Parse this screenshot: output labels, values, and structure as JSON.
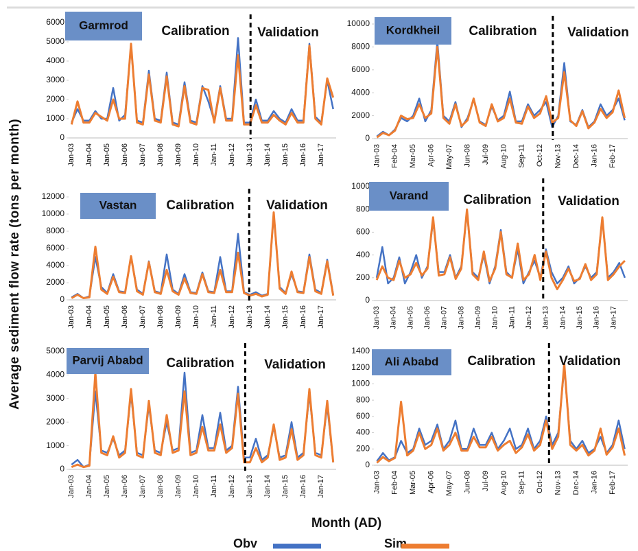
{
  "figure": {
    "y_label": "Average sediment flow rate (tons per month)",
    "x_label": "Month (AD)"
  },
  "chart_data": [
    {
      "type": "line",
      "title": "Garmrod",
      "annotations": [
        "Calibration",
        "Validation"
      ],
      "categories": [
        "Jan-03",
        null,
        null,
        "Jan-04",
        null,
        null,
        "Jan-05",
        null,
        null,
        "Jan-06",
        null,
        null,
        "Jan-07",
        null,
        null,
        "Jan-08",
        null,
        null,
        "Jan-09",
        null,
        null,
        "Jan-10",
        null,
        null,
        "Jan-11",
        null,
        null,
        "Jan-12",
        null,
        null,
        "Jan-13",
        null,
        null,
        "Jan-14",
        null,
        null,
        "Jan-15",
        null,
        null,
        "Jan-16",
        null,
        null,
        "Jan-17",
        null,
        null
      ],
      "series": [
        {
          "name": "Obv",
          "color": "#4472c4",
          "values": [
            800,
            1500,
            900,
            900,
            1400,
            1000,
            1000,
            2600,
            900,
            1200,
            4800,
            900,
            800,
            3500,
            1000,
            900,
            3400,
            800,
            700,
            2900,
            900,
            800,
            2700,
            1900,
            900,
            2700,
            1000,
            1000,
            5200,
            800,
            800,
            2000,
            900,
            900,
            1400,
            1000,
            800,
            1500,
            900,
            900,
            4900,
            1100,
            800,
            3000,
            1500
          ]
        },
        {
          "name": "Sim",
          "color": "#ed7d31",
          "values": [
            700,
            1900,
            800,
            800,
            1300,
            1100,
            900,
            2000,
            1000,
            1000,
            4900,
            800,
            700,
            3300,
            900,
            800,
            3200,
            700,
            600,
            2700,
            800,
            700,
            2600,
            2500,
            800,
            2600,
            900,
            900,
            4300,
            700,
            700,
            1700,
            800,
            800,
            1200,
            900,
            700,
            1300,
            800,
            800,
            4800,
            1000,
            700,
            3100,
            2100
          ]
        }
      ],
      "ylim": [
        0,
        6000
      ],
      "yticks": [
        0,
        1000,
        2000,
        3000,
        4000,
        5000,
        6000
      ]
    },
    {
      "type": "line",
      "title": "Kordkheil",
      "annotations": [
        "Calibration",
        "Validation"
      ],
      "categories": [
        "Jan-03",
        null,
        null,
        "Feb-04",
        null,
        null,
        "Mar-05",
        null,
        null,
        "Apr-06",
        null,
        null,
        "May-07",
        null,
        null,
        "Jun-08",
        null,
        null,
        "Jul-09",
        null,
        null,
        "Aug-10",
        null,
        null,
        "Sep-11",
        null,
        null,
        "Oct-12",
        null,
        null,
        "Nov-13",
        null,
        null,
        "Dec-14",
        null,
        null,
        "Jan-16",
        null,
        null,
        "Feb-17",
        null,
        null
      ],
      "series": [
        {
          "name": "Obv",
          "color": "#4472c4",
          "values": [
            200,
            600,
            300,
            800,
            1800,
            1500,
            2000,
            3500,
            1500,
            2500,
            8500,
            2000,
            1500,
            3200,
            1000,
            1800,
            3400,
            1500,
            1200,
            2800,
            1600,
            2000,
            4100,
            1500,
            1500,
            3000,
            2000,
            2500,
            3200,
            1000,
            2000,
            6600,
            1500,
            1200,
            2500,
            1000,
            1500,
            3000,
            2000,
            2500,
            3500,
            1600
          ]
        },
        {
          "name": "Sim",
          "color": "#ed7d31",
          "values": [
            100,
            500,
            300,
            700,
            2000,
            1700,
            1800,
            3000,
            1800,
            2200,
            8000,
            1800,
            1300,
            3000,
            1100,
            1600,
            3500,
            1400,
            1100,
            3000,
            1500,
            1800,
            3500,
            1400,
            1300,
            2800,
            1800,
            2200,
            3700,
            1400,
            1800,
            5800,
            1600,
            1100,
            2400,
            900,
            1400,
            2600,
            1800,
            2300,
            4200,
            1800
          ]
        }
      ],
      "ylim": [
        0,
        10000
      ],
      "yticks": [
        0,
        2000,
        4000,
        6000,
        8000,
        10000
      ]
    },
    {
      "type": "line",
      "title": "Vastan",
      "annotations": [
        "Calibration",
        "Validation"
      ],
      "categories": [
        "Jan-03",
        null,
        null,
        "Jan-04",
        null,
        null,
        "Jan-05",
        null,
        null,
        "Jan-06",
        null,
        null,
        "Jan-07",
        null,
        null,
        "Jan-08",
        null,
        null,
        "Jan-09",
        null,
        null,
        "Jan-10",
        null,
        null,
        "Jan-11",
        null,
        null,
        "Jan-12",
        null,
        null,
        "Jan-13",
        null,
        null,
        "Jan-14",
        null,
        null,
        "Jan-15",
        null,
        null,
        "Jan-16",
        null,
        null,
        "Jan-17",
        null,
        null
      ],
      "series": [
        {
          "name": "Obv",
          "color": "#4472c4",
          "values": [
            300,
            700,
            200,
            400,
            5000,
            1500,
            800,
            3000,
            1000,
            900,
            5000,
            1200,
            700,
            4500,
            1000,
            800,
            5300,
            1200,
            700,
            3000,
            900,
            800,
            3200,
            1000,
            900,
            5000,
            1000,
            1000,
            7700,
            900,
            600,
            900,
            500,
            700,
            10000,
            1500,
            800,
            3000,
            1000,
            900,
            5300,
            1200,
            800,
            4700,
            600
          ]
        },
        {
          "name": "Sim",
          "color": "#ed7d31",
          "values": [
            200,
            600,
            200,
            300,
            6200,
            1200,
            700,
            2700,
            900,
            800,
            5100,
            1000,
            600,
            4400,
            900,
            700,
            3500,
            1000,
            600,
            2500,
            800,
            700,
            3000,
            900,
            800,
            3500,
            900,
            900,
            5500,
            800,
            500,
            700,
            400,
            600,
            10200,
            1300,
            700,
            3300,
            900,
            800,
            5000,
            1000,
            700,
            4500,
            500
          ]
        }
      ],
      "ylim": [
        0,
        12000
      ],
      "yticks": [
        0,
        2000,
        4000,
        6000,
        8000,
        10000,
        12000
      ]
    },
    {
      "type": "line",
      "title": "Varand",
      "annotations": [
        "Calibration",
        "Validation"
      ],
      "categories": [
        "Jan-03",
        null,
        null,
        "Jan-04",
        null,
        null,
        "Jan-05",
        null,
        null,
        "Jan-06",
        null,
        null,
        "Jan-07",
        null,
        null,
        "Jan-08",
        null,
        null,
        "Jan-09",
        null,
        null,
        "Jan-10",
        null,
        null,
        "Jan-11",
        null,
        null,
        "Jan-12",
        null,
        null,
        "Jan-13",
        null,
        null,
        "Jan-14",
        null,
        null,
        "Jan-15",
        null,
        null,
        "Jan-16",
        null,
        null,
        "Jan-17",
        null,
        null
      ],
      "series": [
        {
          "name": "Obv",
          "color": "#4472c4",
          "values": [
            200,
            470,
            150,
            200,
            380,
            150,
            250,
            400,
            200,
            300,
            700,
            250,
            250,
            400,
            200,
            300,
            780,
            250,
            200,
            400,
            150,
            300,
            620,
            250,
            200,
            450,
            150,
            250,
            350,
            200,
            450,
            250,
            150,
            200,
            300,
            150,
            200,
            300,
            200,
            250,
            720,
            200,
            250,
            330,
            200
          ]
        },
        {
          "name": "Sim",
          "color": "#ed7d31",
          "values": [
            180,
            300,
            200,
            180,
            350,
            200,
            230,
            330,
            220,
            280,
            730,
            220,
            230,
            380,
            190,
            280,
            800,
            230,
            180,
            430,
            170,
            280,
            600,
            230,
            200,
            500,
            180,
            230,
            400,
            180,
            430,
            200,
            100,
            180,
            280,
            170,
            190,
            320,
            180,
            230,
            730,
            180,
            230,
            300,
            350
          ]
        }
      ],
      "ylim": [
        0,
        1000
      ],
      "yticks": [
        0,
        200,
        400,
        600,
        800,
        1000
      ]
    },
    {
      "type": "line",
      "title": "Parvij Ababd",
      "annotations": [
        "Calibration",
        "Validation"
      ],
      "categories": [
        "Jan-03",
        null,
        null,
        "Jan-04",
        null,
        null,
        "Jan-05",
        null,
        null,
        "Jan-06",
        null,
        null,
        "Jan-07",
        null,
        null,
        "Jan-08",
        null,
        null,
        "Jan-09",
        null,
        null,
        "Jan-10",
        null,
        null,
        "Jan-11",
        null,
        null,
        "Jan-12",
        null,
        null,
        "Jan-13",
        null,
        null,
        "Jan-14",
        null,
        null,
        "Jan-15",
        null,
        null,
        "Jan-16",
        null,
        null,
        "Jan-17",
        null,
        null
      ],
      "series": [
        {
          "name": "Obv",
          "color": "#4472c4",
          "values": [
            200,
            400,
            100,
            200,
            3300,
            800,
            700,
            1300,
            600,
            800,
            3200,
            700,
            600,
            2700,
            800,
            700,
            2000,
            800,
            900,
            4100,
            700,
            800,
            2300,
            900,
            900,
            2400,
            800,
            1000,
            3500,
            500,
            500,
            1300,
            400,
            600,
            1800,
            500,
            600,
            2000,
            500,
            700,
            3200,
            700,
            600,
            2700,
            300
          ]
        },
        {
          "name": "Sim",
          "color": "#ed7d31",
          "values": [
            100,
            200,
            100,
            150,
            4100,
            700,
            600,
            1400,
            500,
            700,
            3400,
            600,
            500,
            2900,
            700,
            600,
            2300,
            700,
            800,
            3300,
            600,
            700,
            1800,
            800,
            800,
            1900,
            700,
            900,
            3200,
            300,
            300,
            900,
            300,
            500,
            1900,
            400,
            500,
            1700,
            400,
            600,
            3400,
            600,
            500,
            2900,
            300
          ]
        }
      ],
      "ylim": [
        0,
        5000
      ],
      "yticks": [
        0,
        1000,
        2000,
        3000,
        4000,
        5000
      ]
    },
    {
      "type": "line",
      "title": "Ali Ababd",
      "annotations": [
        "Calibration",
        "Validation"
      ],
      "categories": [
        "Jan-03",
        null,
        null,
        "Feb-04",
        null,
        null,
        "Mar-05",
        null,
        null,
        "Apr-06",
        null,
        null,
        "May-07",
        null,
        null,
        "Jun-08",
        null,
        null,
        "Jul-09",
        null,
        null,
        "Aug-10",
        null,
        null,
        "Sep-11",
        null,
        null,
        "Oct-12",
        null,
        null,
        "Nov-13",
        null,
        null,
        "Dec-14",
        null,
        null,
        "Jan-16",
        null,
        null,
        "Feb-17",
        null,
        null
      ],
      "series": [
        {
          "name": "Obv",
          "color": "#4472c4",
          "values": [
            50,
            150,
            60,
            100,
            300,
            150,
            200,
            450,
            250,
            300,
            500,
            200,
            300,
            550,
            200,
            200,
            450,
            250,
            250,
            400,
            200,
            300,
            450,
            200,
            250,
            450,
            200,
            300,
            600,
            250,
            400,
            1200,
            300,
            200,
            300,
            150,
            200,
            350,
            150,
            250,
            550,
            200
          ]
        },
        {
          "name": "Sim",
          "color": "#ed7d31",
          "values": [
            30,
            100,
            50,
            90,
            780,
            120,
            180,
            400,
            200,
            250,
            450,
            180,
            250,
            400,
            180,
            180,
            350,
            220,
            220,
            350,
            180,
            250,
            300,
            150,
            220,
            380,
            180,
            250,
            550,
            200,
            350,
            1250,
            250,
            180,
            250,
            120,
            180,
            450,
            130,
            220,
            450,
            120
          ]
        }
      ],
      "ylim": [
        0,
        1400
      ],
      "yticks": [
        0,
        200,
        400,
        600,
        800,
        1000,
        1200,
        1400
      ]
    }
  ]
}
